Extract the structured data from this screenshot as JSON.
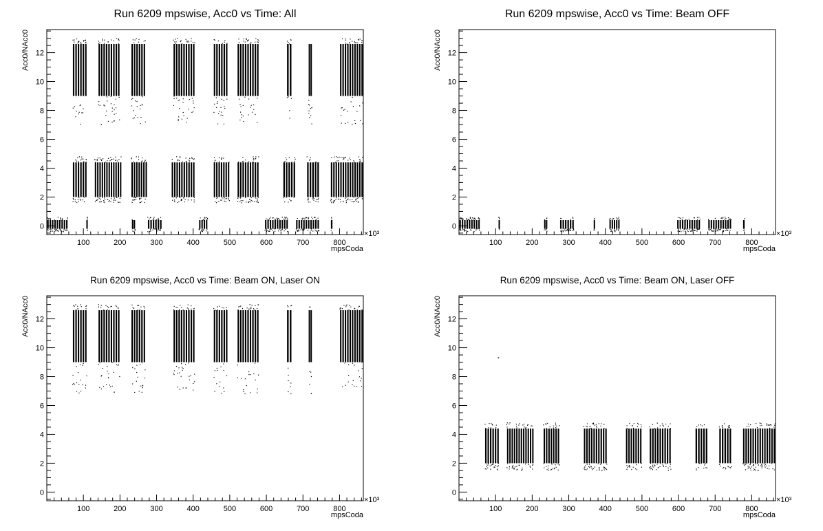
{
  "chart_data": [
    {
      "type": "scatter",
      "title": "Run 6209 mpswise, Acc0 vs Time: All",
      "xlabel": "mpsCoda",
      "ylabel": "Acc0/NAcc0",
      "x_multiplier_label": "×10³",
      "xlim": [
        0,
        865
      ],
      "ylim": [
        -0.6,
        13.6
      ],
      "x_ticks": [
        100,
        200,
        300,
        400,
        500,
        600,
        700,
        800
      ],
      "y_ticks": [
        0,
        2,
        4,
        6,
        8,
        10,
        12
      ],
      "grid": false,
      "series": [
        {
          "bands": [
            {
              "ymin": 9.0,
              "ymax": 12.6,
              "ylow": 7.0,
              "yhigh": 13.0,
              "segments": [
                [
                  70,
                  110
                ],
                [
                  140,
                  200
                ],
                [
                  230,
                  270
                ],
                [
                  345,
                  405
                ],
                [
                  455,
                  495
                ],
                [
                  520,
                  580
                ],
                [
                  655,
                  670
                ],
                [
                  715,
                  725
                ],
                [
                  800,
                  865
                ]
              ]
            },
            {
              "ymin": 2.0,
              "ymax": 4.4,
              "ylow": 1.6,
              "yhigh": 4.8,
              "segments": [
                [
                  70,
                  110
                ],
                [
                  130,
                  205
                ],
                [
                  230,
                  275
                ],
                [
                  340,
                  405
                ],
                [
                  455,
                  500
                ],
                [
                  520,
                  580
                ],
                [
                  645,
                  680
                ],
                [
                  710,
                  745
                ],
                [
                  775,
                  865
                ]
              ]
            },
            {
              "ymin": -0.2,
              "ymax": 0.4,
              "ylow": -0.4,
              "yhigh": 0.6,
              "segments": [
                [
                  0,
                  58
                ],
                [
                  108,
                  112
                ],
                [
                  232,
                  242
                ],
                [
                  275,
                  315
                ],
                [
                  415,
                  440
                ],
                [
                  595,
                  660
                ],
                [
                  680,
                  745
                ],
                [
                  775,
                  782
                ]
              ]
            }
          ]
        }
      ]
    },
    {
      "type": "scatter",
      "title": "Run 6209 mpswise, Acc0 vs Time: Beam OFF",
      "xlabel": "mpsCoda",
      "ylabel": "Acc0/NAcc0",
      "x_multiplier_label": "×10³",
      "xlim": [
        0,
        865
      ],
      "ylim": [
        -0.6,
        13.6
      ],
      "x_ticks": [
        100,
        200,
        300,
        400,
        500,
        600,
        700,
        800
      ],
      "y_ticks": [
        0,
        2,
        4,
        6,
        8,
        10,
        12
      ],
      "grid": false,
      "series": [
        {
          "bands": [
            {
              "ymin": -0.2,
              "ymax": 0.4,
              "ylow": -0.4,
              "yhigh": 0.6,
              "segments": [
                [
                  0,
                  58
                ],
                [
                  108,
                  112
                ],
                [
                  232,
                  242
                ],
                [
                  275,
                  315
                ],
                [
                  368,
                  372
                ],
                [
                  410,
                  440
                ],
                [
                  595,
                  660
                ],
                [
                  680,
                  745
                ],
                [
                  775,
                  782
                ]
              ]
            }
          ]
        }
      ]
    },
    {
      "type": "scatter",
      "title": "Run 6209 mpswise, Acc0 vs Time: Beam ON, Laser ON",
      "xlabel": "mpsCoda",
      "ylabel": "Acc0/NAcc0",
      "x_multiplier_label": "×10³",
      "xlim": [
        0,
        865
      ],
      "ylim": [
        -0.6,
        13.6
      ],
      "x_ticks": [
        100,
        200,
        300,
        400,
        500,
        600,
        700,
        800
      ],
      "y_ticks": [
        0,
        2,
        4,
        6,
        8,
        10,
        12
      ],
      "grid": false,
      "series": [
        {
          "bands": [
            {
              "ymin": 9.0,
              "ymax": 12.6,
              "ylow": 6.8,
              "yhigh": 13.0,
              "segments": [
                [
                  70,
                  110
                ],
                [
                  140,
                  200
                ],
                [
                  230,
                  270
                ],
                [
                  345,
                  405
                ],
                [
                  455,
                  495
                ],
                [
                  520,
                  580
                ],
                [
                  655,
                  670
                ],
                [
                  715,
                  725
                ],
                [
                  800,
                  865
                ]
              ]
            }
          ]
        }
      ]
    },
    {
      "type": "scatter",
      "title": "Run 6209 mpswise, Acc0 vs Time: Beam ON, Laser OFF",
      "xlabel": "mpsCoda",
      "ylabel": "Acc0/NAcc0",
      "x_multiplier_label": "×10³",
      "xlim": [
        0,
        865
      ],
      "ylim": [
        -0.6,
        13.6
      ],
      "x_ticks": [
        100,
        200,
        300,
        400,
        500,
        600,
        700,
        800
      ],
      "y_ticks": [
        0,
        2,
        4,
        6,
        8,
        10,
        12
      ],
      "grid": false,
      "series": [
        {
          "bands": [
            {
              "ymin": 2.0,
              "ymax": 4.4,
              "ylow": 1.5,
              "yhigh": 4.8,
              "segments": [
                [
                  70,
                  110
                ],
                [
                  130,
                  205
                ],
                [
                  230,
                  275
                ],
                [
                  340,
                  405
                ],
                [
                  455,
                  500
                ],
                [
                  520,
                  580
                ],
                [
                  645,
                  680
                ],
                [
                  710,
                  745
                ],
                [
                  775,
                  865
                ]
              ]
            }
          ],
          "points": [
            [
              108,
              9.3
            ]
          ]
        }
      ]
    }
  ]
}
